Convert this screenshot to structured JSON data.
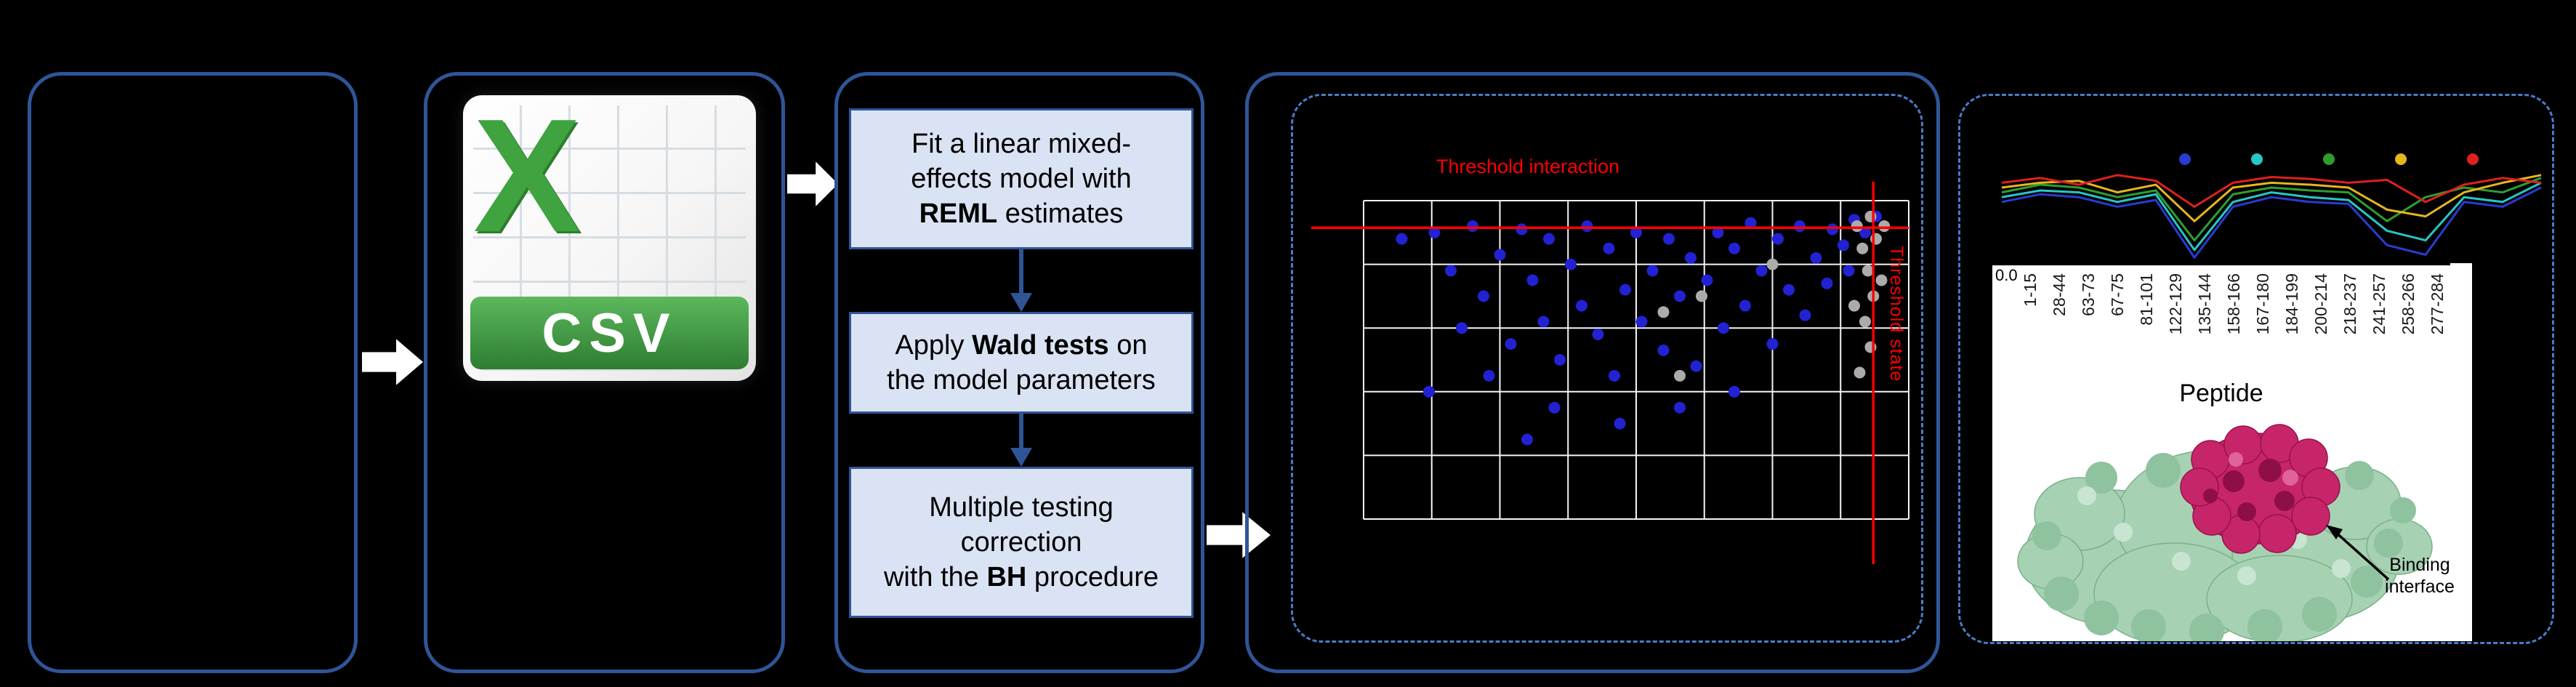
{
  "csv_icon": {
    "letter": "X",
    "label": "CSV"
  },
  "steps": [
    {
      "pre": "Fit a linear mixed-\neffects model with\n",
      "bold": "REML",
      "post": " estimates"
    },
    {
      "pre": "Apply ",
      "bold": "Wald tests",
      "post": " on\nthe model parameters"
    },
    {
      "pre": "Multiple testing\ncorrection\nwith the ",
      "bold": "BH",
      "post": " procedure"
    }
  ],
  "results": {
    "binding_label": "Binding\ninterface"
  },
  "chart_data": [
    {
      "type": "scatter",
      "title": "Threshold interaction",
      "side_label": "Threshold state",
      "grid": {
        "cols": 8,
        "rows": 5,
        "color": "#ffffff"
      },
      "thresholds": {
        "horizontal_y": 0.915,
        "vertical_x": 0.935,
        "color": "#ff0000"
      },
      "x_range": [
        0,
        1
      ],
      "y_range": [
        0,
        1
      ],
      "legend_position": "none",
      "series": [
        {
          "name": "significant-peptides",
          "color": "#2222d2",
          "points": [
            [
              0.07,
              0.88
            ],
            [
              0.13,
              0.9
            ],
            [
              0.16,
              0.78
            ],
            [
              0.2,
              0.92
            ],
            [
              0.22,
              0.7
            ],
            [
              0.25,
              0.83
            ],
            [
              0.27,
              0.55
            ],
            [
              0.29,
              0.91
            ],
            [
              0.31,
              0.75
            ],
            [
              0.33,
              0.62
            ],
            [
              0.34,
              0.88
            ],
            [
              0.36,
              0.5
            ],
            [
              0.38,
              0.8
            ],
            [
              0.4,
              0.67
            ],
            [
              0.41,
              0.92
            ],
            [
              0.43,
              0.58
            ],
            [
              0.45,
              0.85
            ],
            [
              0.46,
              0.45
            ],
            [
              0.48,
              0.72
            ],
            [
              0.5,
              0.9
            ],
            [
              0.51,
              0.62
            ],
            [
              0.53,
              0.78
            ],
            [
              0.55,
              0.53
            ],
            [
              0.56,
              0.88
            ],
            [
              0.58,
              0.7
            ],
            [
              0.6,
              0.82
            ],
            [
              0.61,
              0.48
            ],
            [
              0.63,
              0.75
            ],
            [
              0.65,
              0.9
            ],
            [
              0.66,
              0.6
            ],
            [
              0.68,
              0.85
            ],
            [
              0.7,
              0.67
            ],
            [
              0.71,
              0.93
            ],
            [
              0.73,
              0.78
            ],
            [
              0.75,
              0.55
            ],
            [
              0.76,
              0.88
            ],
            [
              0.78,
              0.72
            ],
            [
              0.8,
              0.92
            ],
            [
              0.81,
              0.64
            ],
            [
              0.83,
              0.82
            ],
            [
              0.85,
              0.74
            ],
            [
              0.86,
              0.91
            ],
            [
              0.88,
              0.86
            ],
            [
              0.9,
              0.94
            ],
            [
              0.47,
              0.3
            ],
            [
              0.3,
              0.25
            ],
            [
              0.12,
              0.4
            ],
            [
              0.58,
              0.35
            ],
            [
              0.23,
              0.45
            ],
            [
              0.68,
              0.4
            ],
            [
              0.92,
              0.9
            ],
            [
              0.94,
              0.95
            ],
            [
              0.89,
              0.78
            ],
            [
              0.35,
              0.35
            ],
            [
              0.18,
              0.6
            ]
          ]
        },
        {
          "name": "non-significant-peptides",
          "color": "#ababab",
          "points": [
            [
              0.905,
              0.92
            ],
            [
              0.915,
              0.85
            ],
            [
              0.925,
              0.78
            ],
            [
              0.935,
              0.7
            ],
            [
              0.92,
              0.62
            ],
            [
              0.93,
              0.54
            ],
            [
              0.91,
              0.46
            ],
            [
              0.94,
              0.88
            ],
            [
              0.95,
              0.75
            ],
            [
              0.9,
              0.67
            ],
            [
              0.62,
              0.7
            ],
            [
              0.55,
              0.65
            ],
            [
              0.58,
              0.45
            ],
            [
              0.75,
              0.8
            ],
            [
              0.93,
              0.95
            ],
            [
              0.955,
              0.92
            ]
          ]
        }
      ]
    },
    {
      "type": "line",
      "categories": [
        "1-15",
        "28-44",
        "63-73",
        "67-75",
        "81-101",
        "122-129",
        "135-144",
        "158-166",
        "167-180",
        "184-199",
        "200-214",
        "218-237",
        "241-257",
        "258-266",
        "277-284"
      ],
      "xlabel": "Peptide",
      "y_tick_label": "0.0",
      "ylim": [
        0,
        1
      ],
      "legend_position": "top",
      "legend_colors": [
        "#2a3bd0",
        "#27c7c7",
        "#2e9e2e",
        "#e8b51f",
        "#e01f1f"
      ],
      "series": [
        {
          "name": "state-blue",
          "color": "#2a3bd0",
          "values": [
            0.6,
            0.68,
            0.65,
            0.55,
            0.62,
            0.02,
            0.55,
            0.65,
            0.6,
            0.58,
            0.15,
            0.05,
            0.6,
            0.55,
            0.75
          ]
        },
        {
          "name": "state-cyan",
          "color": "#27c7c7",
          "values": [
            0.65,
            0.72,
            0.7,
            0.6,
            0.68,
            0.1,
            0.6,
            0.7,
            0.65,
            0.62,
            0.3,
            0.2,
            0.65,
            0.6,
            0.8
          ]
        },
        {
          "name": "state-green",
          "color": "#2e9e2e",
          "values": [
            0.7,
            0.78,
            0.75,
            0.65,
            0.72,
            0.2,
            0.68,
            0.75,
            0.72,
            0.7,
            0.4,
            0.65,
            0.75,
            0.7,
            0.85
          ]
        },
        {
          "name": "state-yellow",
          "color": "#e8b51f",
          "values": [
            0.75,
            0.8,
            0.82,
            0.7,
            0.78,
            0.4,
            0.75,
            0.8,
            0.78,
            0.75,
            0.52,
            0.45,
            0.7,
            0.8,
            0.88
          ]
        },
        {
          "name": "state-red",
          "color": "#e01f1f",
          "values": [
            0.8,
            0.85,
            0.78,
            0.88,
            0.82,
            0.55,
            0.8,
            0.86,
            0.84,
            0.8,
            0.83,
            0.6,
            0.78,
            0.85,
            0.8
          ]
        }
      ]
    }
  ]
}
